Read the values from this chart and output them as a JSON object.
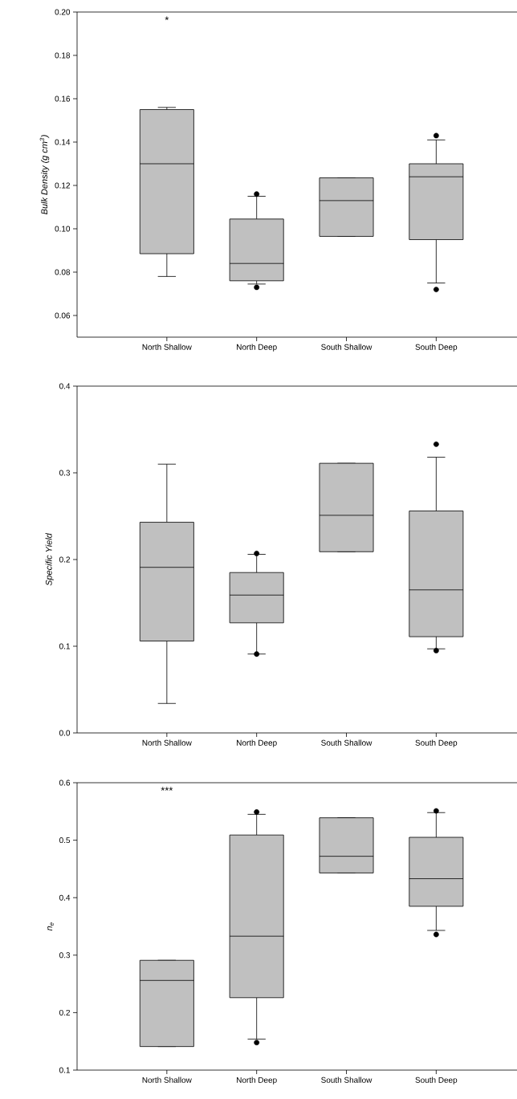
{
  "chart_data": [
    {
      "type": "box",
      "ylabel": "Bulk Density (g cm$^{3}$)",
      "categories": [
        "North Shallow",
        "North Deep",
        "South Shallow",
        "South Deep"
      ],
      "color": "#c0c0c0",
      "boxes": [
        {
          "low": 0.078,
          "q1": 0.0885,
          "median": 0.13,
          "q3": 0.155,
          "high": 0.156
        },
        {
          "low": 0.0745,
          "q1": 0.076,
          "median": 0.084,
          "q3": 0.1045,
          "high": 0.115,
          "outliers": [
            0.116,
            0.073
          ]
        },
        {
          "low": 0.0965,
          "q1": 0.0965,
          "median": 0.113,
          "q3": 0.1235,
          "high": 0.1235
        },
        {
          "low": 0.075,
          "q1": 0.095,
          "median": 0.124,
          "q3": 0.13,
          "high": 0.141,
          "outliers": [
            0.143,
            0.072
          ]
        }
      ],
      "ylim": [
        0.05,
        0.2
      ],
      "yticks": [
        {
          "value": 0.06,
          "label": "0.06"
        },
        {
          "value": 0.08,
          "label": "0.08"
        },
        {
          "value": 0.1,
          "label": "0.10"
        },
        {
          "value": 0.12,
          "label": "0.12"
        },
        {
          "value": 0.14,
          "label": "0.14"
        },
        {
          "value": 0.16,
          "label": "0.16"
        },
        {
          "value": 0.18,
          "label": "0.18"
        },
        {
          "value": 0.2,
          "label": "0.20"
        }
      ],
      "annotations": [
        "*"
      ]
    },
    {
      "type": "box",
      "ylabel": "Specific Yield",
      "categories": [
        "North Shallow",
        "North Deep",
        "South Shallow",
        "South Deep"
      ],
      "color": "#c0c0c0",
      "boxes": [
        {
          "low": 0.034,
          "q1": 0.106,
          "median": 0.191,
          "q3": 0.243,
          "high": 0.31
        },
        {
          "low": 0.091,
          "q1": 0.127,
          "median": 0.159,
          "q3": 0.185,
          "high": 0.206,
          "outliers": [
            0.207,
            0.091
          ]
        },
        {
          "low": 0.209,
          "q1": 0.209,
          "median": 0.251,
          "q3": 0.311,
          "high": 0.311
        },
        {
          "low": 0.097,
          "q1": 0.111,
          "median": 0.165,
          "q3": 0.256,
          "high": 0.318,
          "outliers": [
            0.333,
            0.095
          ]
        }
      ],
      "ylim": [
        0,
        0.4
      ],
      "yticks": [
        {
          "value": 0,
          "label": "0.0"
        },
        0.1,
        0.2,
        0.3,
        0.4
      ]
    },
    {
      "type": "box",
      "ylabel": "n$_{e}$",
      "categories": [
        "North Shallow",
        "North Deep",
        "South Shallow",
        "South Deep"
      ],
      "color": "#c0c0c0",
      "boxes": [
        {
          "low": 0.141,
          "q1": 0.141,
          "median": 0.256,
          "q3": 0.291,
          "high": 0.291
        },
        {
          "low": 0.154,
          "q1": 0.226,
          "median": 0.333,
          "q3": 0.509,
          "high": 0.545,
          "outliers": [
            0.549,
            0.148
          ]
        },
        {
          "low": 0.443,
          "q1": 0.443,
          "median": 0.472,
          "q3": 0.539,
          "high": 0.539
        },
        {
          "low": 0.343,
          "q1": 0.385,
          "median": 0.433,
          "q3": 0.505,
          "high": 0.548,
          "outliers": [
            0.551,
            0.336
          ]
        }
      ],
      "ylim": [
        0.1,
        0.6
      ],
      "yticks": [
        0.1,
        0.2,
        0.3,
        0.4,
        0.5,
        0.6
      ],
      "annotations": [
        "***"
      ]
    }
  ]
}
